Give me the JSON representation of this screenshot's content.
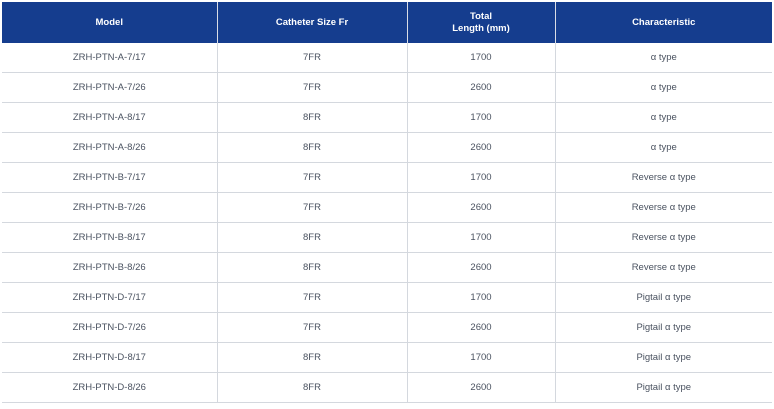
{
  "table": {
    "headers": {
      "model": "Model",
      "catheter_size": "Catheter Size Fr",
      "total_length_line1": "Total",
      "total_length_line2": "Length (mm)",
      "characteristic": "Characteristic"
    },
    "rows": [
      {
        "model": "ZRH-PTN-A-7/17",
        "size": "7FR",
        "length": "1700",
        "characteristic": "α type"
      },
      {
        "model": "ZRH-PTN-A-7/26",
        "size": "7FR",
        "length": "2600",
        "characteristic": "α type"
      },
      {
        "model": "ZRH-PTN-A-8/17",
        "size": "8FR",
        "length": "1700",
        "characteristic": "α type"
      },
      {
        "model": "ZRH-PTN-A-8/26",
        "size": "8FR",
        "length": "2600",
        "characteristic": "α type"
      },
      {
        "model": "ZRH-PTN-B-7/17",
        "size": "7FR",
        "length": "1700",
        "characteristic": "Reverse α type"
      },
      {
        "model": "ZRH-PTN-B-7/26",
        "size": "7FR",
        "length": "2600",
        "characteristic": "Reverse α type"
      },
      {
        "model": "ZRH-PTN-B-8/17",
        "size": "8FR",
        "length": "1700",
        "characteristic": "Reverse α type"
      },
      {
        "model": "ZRH-PTN-B-8/26",
        "size": "8FR",
        "length": "2600",
        "characteristic": "Reverse α type"
      },
      {
        "model": "ZRH-PTN-D-7/17",
        "size": "7FR",
        "length": "1700",
        "characteristic": "Pigtail α type"
      },
      {
        "model": "ZRH-PTN-D-7/26",
        "size": "7FR",
        "length": "2600",
        "characteristic": "Pigtail α type"
      },
      {
        "model": "ZRH-PTN-D-8/17",
        "size": "8FR",
        "length": "1700",
        "characteristic": "Pigtail α type"
      },
      {
        "model": "ZRH-PTN-D-8/26",
        "size": "8FR",
        "length": "2600",
        "characteristic": "Pigtail α type"
      }
    ]
  }
}
